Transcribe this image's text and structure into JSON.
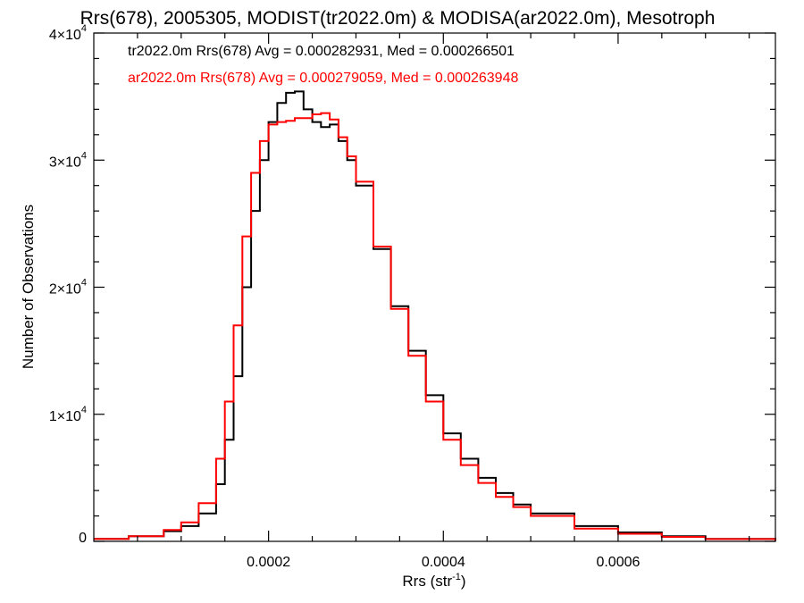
{
  "chart_data": {
    "type": "line",
    "title": "Rrs(678), 2005305, MODIST(tr2022.0m) & MODISA(ar2022.0m), Mesotroph",
    "xlabel": "Rrs (str",
    "xlabel_exp": "-1",
    "xlabel_suffix": ")",
    "ylabel": "Number of Observations",
    "xlim": [
      0.0,
      0.00078
    ],
    "ylim": [
      0,
      40000
    ],
    "x_ticks": [
      {
        "value": 0.0002,
        "label": "0.0002"
      },
      {
        "value": 0.0004,
        "label": "0.0004"
      },
      {
        "value": 0.0006,
        "label": "0.0006"
      }
    ],
    "y_ticks": [
      {
        "value": 0,
        "label": "0",
        "exp": ""
      },
      {
        "value": 10000,
        "label": "1×10",
        "exp": "4"
      },
      {
        "value": 20000,
        "label": "2×10",
        "exp": "4"
      },
      {
        "value": 30000,
        "label": "3×10",
        "exp": "4"
      },
      {
        "value": 40000,
        "label": "4×10",
        "exp": "4"
      }
    ],
    "legend_position": "top-left",
    "series": [
      {
        "name": "tr2022.0m Rrs(678) Avg = 0.000282931, Med = 0.000266501",
        "color": "#000000",
        "x": [
          0.0,
          4e-05,
          8e-05,
          0.0001,
          0.00012,
          0.00014,
          0.00015,
          0.00016,
          0.00017,
          0.00018,
          0.00019,
          0.0002,
          0.00021,
          0.00022,
          0.00023,
          0.00024,
          0.00025,
          0.00026,
          0.00027,
          0.00028,
          0.00029,
          0.0003,
          0.00032,
          0.00034,
          0.00036,
          0.00038,
          0.0004,
          0.00042,
          0.00044,
          0.00046,
          0.00048,
          0.0005,
          0.00055,
          0.0006,
          0.00065,
          0.0007,
          0.00078
        ],
        "y": [
          200,
          400,
          800,
          1200,
          2200,
          4500,
          8000,
          13000,
          20000,
          26000,
          30000,
          33000,
          34500,
          35300,
          35400,
          34000,
          33000,
          32600,
          32800,
          31500,
          30000,
          28000,
          23000,
          18500,
          15000,
          11500,
          8500,
          6500,
          5000,
          3800,
          2900,
          2200,
          1200,
          700,
          400,
          200,
          50
        ]
      },
      {
        "name": "ar2022.0m Rrs(678) Avg = 0.000279059, Med = 0.000263948",
        "color": "#ff0000",
        "x": [
          0.0,
          4e-05,
          8e-05,
          0.0001,
          0.00012,
          0.00014,
          0.00015,
          0.00016,
          0.00017,
          0.00018,
          0.00019,
          0.0002,
          0.00021,
          0.00022,
          0.00023,
          0.00024,
          0.00025,
          0.00026,
          0.00027,
          0.00028,
          0.00029,
          0.0003,
          0.00032,
          0.00034,
          0.00036,
          0.00038,
          0.0004,
          0.00042,
          0.00044,
          0.00046,
          0.00048,
          0.0005,
          0.00055,
          0.0006,
          0.00065,
          0.0007,
          0.00078
        ],
        "y": [
          200,
          400,
          900,
          1500,
          3000,
          6500,
          11000,
          17000,
          24000,
          29000,
          31500,
          32800,
          33000,
          33100,
          33300,
          33300,
          33600,
          33700,
          33200,
          31800,
          30300,
          28300,
          23200,
          18300,
          14600,
          11000,
          8000,
          6000,
          4600,
          3500,
          2700,
          2000,
          1000,
          600,
          350,
          180,
          50
        ]
      }
    ]
  }
}
